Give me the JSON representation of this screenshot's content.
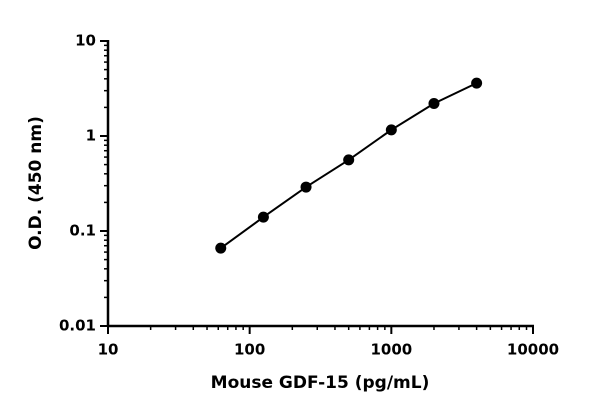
{
  "chart_data": {
    "type": "scatter",
    "x_label": "Mouse GDF-15 (pg/mL)",
    "y_label": "O.D. (450 nm)",
    "x": [
      62.5,
      125,
      250,
      500,
      1000,
      2000,
      4000
    ],
    "series": [
      {
        "color": "#000000",
        "values": [
          0.066,
          0.14,
          0.29,
          0.56,
          1.16,
          2.2,
          3.6
        ]
      }
    ],
    "xlim": [
      10,
      10000
    ],
    "xticks": [
      10,
      100,
      1000,
      10000
    ],
    "ylim": [
      0.01,
      10
    ],
    "yticks": [
      0.01,
      0.1,
      1,
      10
    ],
    "xlog": true,
    "ylog": true
  }
}
